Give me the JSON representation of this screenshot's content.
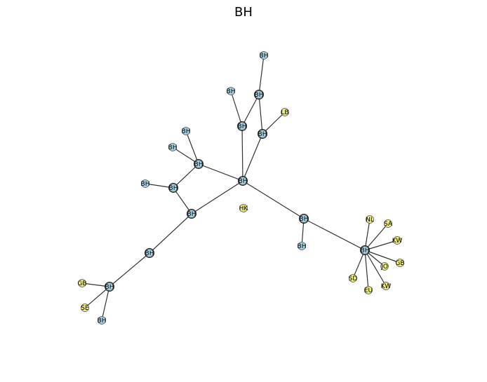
{
  "title": "BH",
  "colors": {
    "blue": "#a8d4e6",
    "yellow": "#f0f07a",
    "edge": "#333333",
    "node_stroke": "#555555"
  },
  "nodes": [
    {
      "id": "n1",
      "label": "BH",
      "color": "blue"
    },
    {
      "id": "n2",
      "label": "BH",
      "color": "blue"
    },
    {
      "id": "n3",
      "label": "BH",
      "color": "blue"
    },
    {
      "id": "n4",
      "label": "LB",
      "color": "yellow"
    },
    {
      "id": "n5",
      "label": "BH",
      "color": "blue"
    },
    {
      "id": "n6",
      "label": "BH",
      "color": "blue"
    },
    {
      "id": "n7",
      "label": "BH",
      "color": "blue"
    },
    {
      "id": "n8",
      "label": "BH",
      "color": "blue"
    },
    {
      "id": "n9",
      "label": "BH",
      "color": "blue"
    },
    {
      "id": "n10",
      "label": "BH",
      "color": "blue"
    },
    {
      "id": "n11",
      "label": "BH",
      "color": "blue"
    },
    {
      "id": "n12",
      "label": "BH",
      "color": "blue"
    },
    {
      "id": "n13",
      "label": "HK",
      "color": "yellow"
    },
    {
      "id": "n14",
      "label": "BH",
      "color": "blue"
    },
    {
      "id": "n15",
      "label": "BH",
      "color": "blue"
    },
    {
      "id": "n16",
      "label": "BH",
      "color": "blue"
    },
    {
      "id": "n17",
      "label": "BH",
      "color": "blue"
    },
    {
      "id": "n18",
      "label": "BH",
      "color": "blue"
    },
    {
      "id": "n19",
      "label": "GB",
      "color": "yellow"
    },
    {
      "id": "n20",
      "label": "SE",
      "color": "yellow"
    },
    {
      "id": "n21",
      "label": "BH",
      "color": "blue"
    },
    {
      "id": "n22",
      "label": "NL",
      "color": "yellow"
    },
    {
      "id": "n23",
      "label": "SA",
      "color": "yellow"
    },
    {
      "id": "n24",
      "label": "KW",
      "color": "yellow"
    },
    {
      "id": "n25",
      "label": "JO",
      "color": "yellow"
    },
    {
      "id": "n26",
      "label": "GB",
      "color": "yellow"
    },
    {
      "id": "n27",
      "label": "SD",
      "color": "yellow"
    },
    {
      "id": "n28",
      "label": "EU",
      "color": "yellow"
    },
    {
      "id": "n29",
      "label": "KW",
      "color": "yellow"
    }
  ],
  "edges": [
    [
      "n1",
      "n3"
    ],
    [
      "n2",
      "n5"
    ],
    [
      "n3",
      "n5"
    ],
    [
      "n3",
      "n6"
    ],
    [
      "n4",
      "n6"
    ],
    [
      "n5",
      "n12"
    ],
    [
      "n6",
      "n12"
    ],
    [
      "n7",
      "n10"
    ],
    [
      "n8",
      "n10"
    ],
    [
      "n10",
      "n11"
    ],
    [
      "n9",
      "n11"
    ],
    [
      "n10",
      "n12"
    ],
    [
      "n11",
      "n14"
    ],
    [
      "n14",
      "n12"
    ],
    [
      "n14",
      "n17"
    ],
    [
      "n17",
      "n18"
    ],
    [
      "n19",
      "n18"
    ],
    [
      "n20",
      "n18"
    ],
    [
      "n21",
      "n18"
    ],
    [
      "n12",
      "n15"
    ],
    [
      "n15",
      "n16"
    ],
    [
      "n15",
      "n22"
    ],
    [
      "n22",
      "n23"
    ],
    [
      "n22",
      "n24"
    ],
    [
      "n22",
      "n25"
    ],
    [
      "n22",
      "n26"
    ],
    [
      "n22",
      "n27"
    ],
    [
      "n22",
      "n28"
    ],
    [
      "n22",
      "n29"
    ]
  ]
}
